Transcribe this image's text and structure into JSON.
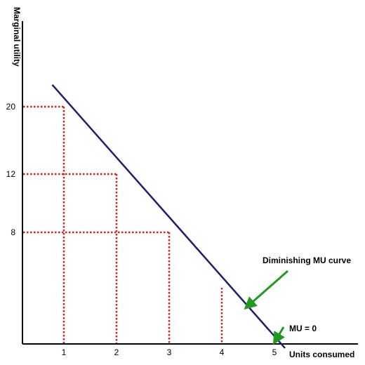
{
  "chart_data": {
    "type": "line",
    "title": "",
    "xlabel": "Units consumed",
    "ylabel": "Marginal utility",
    "x_ticks": [
      1,
      2,
      3,
      4,
      5
    ],
    "y_ticks": [
      8,
      12,
      20
    ],
    "series": [
      {
        "name": "Diminishing MU curve",
        "x": [
          0.78,
          5.2
        ],
        "y": [
          22.6,
          -0.3
        ]
      }
    ],
    "guide_points": [
      {
        "x": 1,
        "y": 20
      },
      {
        "x": 2,
        "y": 12
      },
      {
        "x": 3,
        "y": 8
      },
      {
        "x": 4,
        "y": 0
      }
    ],
    "annotations": [
      {
        "text": "Diminishing MU curve",
        "target": {
          "x": 4.4,
          "y": 2.6
        }
      },
      {
        "text": "MU = 0",
        "target": {
          "x": 5,
          "y": 0
        }
      }
    ],
    "colors": {
      "curve": "#1f1f6e",
      "guides": "#d42020",
      "arrows": "#1f9a1f",
      "axes": "#000000"
    },
    "grid": false,
    "legend": "none"
  }
}
